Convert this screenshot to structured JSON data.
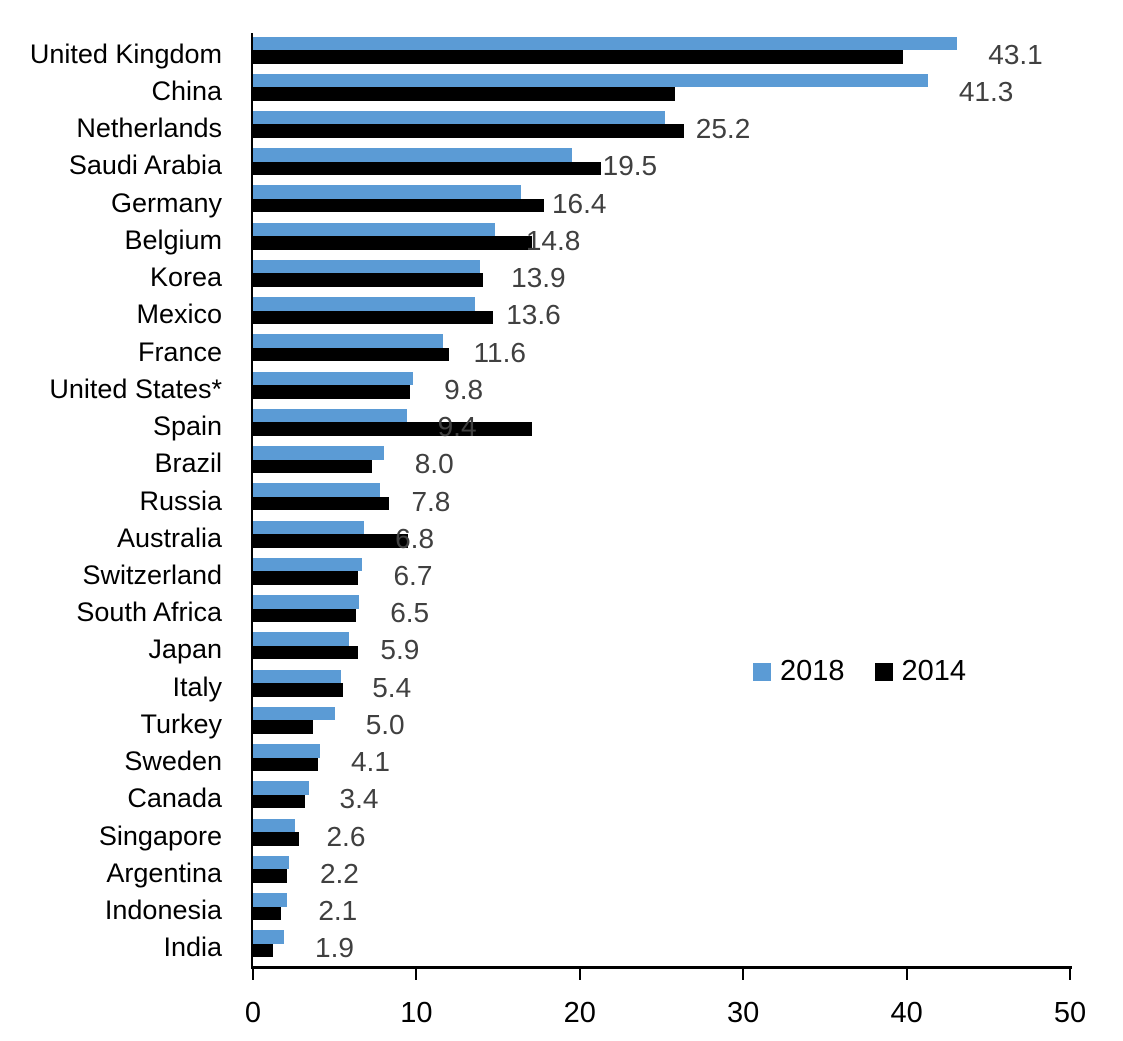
{
  "chart_data": {
    "type": "bar",
    "orientation": "horizontal",
    "title": "",
    "xlabel": "",
    "ylabel": "",
    "xlim": [
      0,
      50
    ],
    "x_ticks": [
      "0",
      "10",
      "20",
      "30",
      "40",
      "50"
    ],
    "grid": false,
    "legend_position": "middle-right",
    "categories": [
      "United Kingdom",
      "China",
      "Netherlands",
      "Saudi Arabia",
      "Germany",
      "Belgium",
      "Korea",
      "Mexico",
      "France",
      "United States*",
      "Spain",
      "Brazil",
      "Russia",
      "Australia",
      "Switzerland",
      "South Africa",
      "Japan",
      "Italy",
      "Turkey",
      "Sweden",
      "Canada",
      "Singapore",
      "Argentina",
      "Indonesia",
      "India"
    ],
    "series": [
      {
        "name": "2018",
        "color": "#5B9BD5",
        "values": [
          43.1,
          41.3,
          25.2,
          19.5,
          16.4,
          14.8,
          13.9,
          13.6,
          11.6,
          9.8,
          9.4,
          8.0,
          7.8,
          6.8,
          6.7,
          6.5,
          5.9,
          5.4,
          5.0,
          4.1,
          3.4,
          2.6,
          2.2,
          2.1,
          1.9
        ]
      },
      {
        "name": "2014",
        "color": "#000000",
        "values": [
          39.8,
          25.8,
          26.4,
          21.3,
          17.8,
          17.1,
          14.1,
          14.7,
          12.0,
          9.6,
          17.1,
          7.3,
          8.3,
          9.5,
          6.4,
          6.3,
          6.4,
          5.5,
          3.7,
          4.0,
          3.2,
          2.8,
          2.1,
          1.7,
          1.2
        ]
      }
    ],
    "data_labels": [
      "43.1",
      "41.3",
      "25.2",
      "19.5",
      "16.4",
      "14.8",
      "13.9",
      "13.6",
      "11.6",
      "9.8",
      "9.4",
      "8.0",
      "7.8",
      "6.8",
      "6.7",
      "6.5",
      "5.9",
      "5.4",
      "5.0",
      "4.1",
      "3.4",
      "2.6",
      "2.2",
      "2.1",
      "1.9"
    ],
    "data_label_series": "2018",
    "data_label_color": "#404040"
  },
  "legend": {
    "entries": [
      {
        "label": "2018",
        "color": "#5B9BD5"
      },
      {
        "label": "2014",
        "color": "#000000"
      }
    ]
  }
}
